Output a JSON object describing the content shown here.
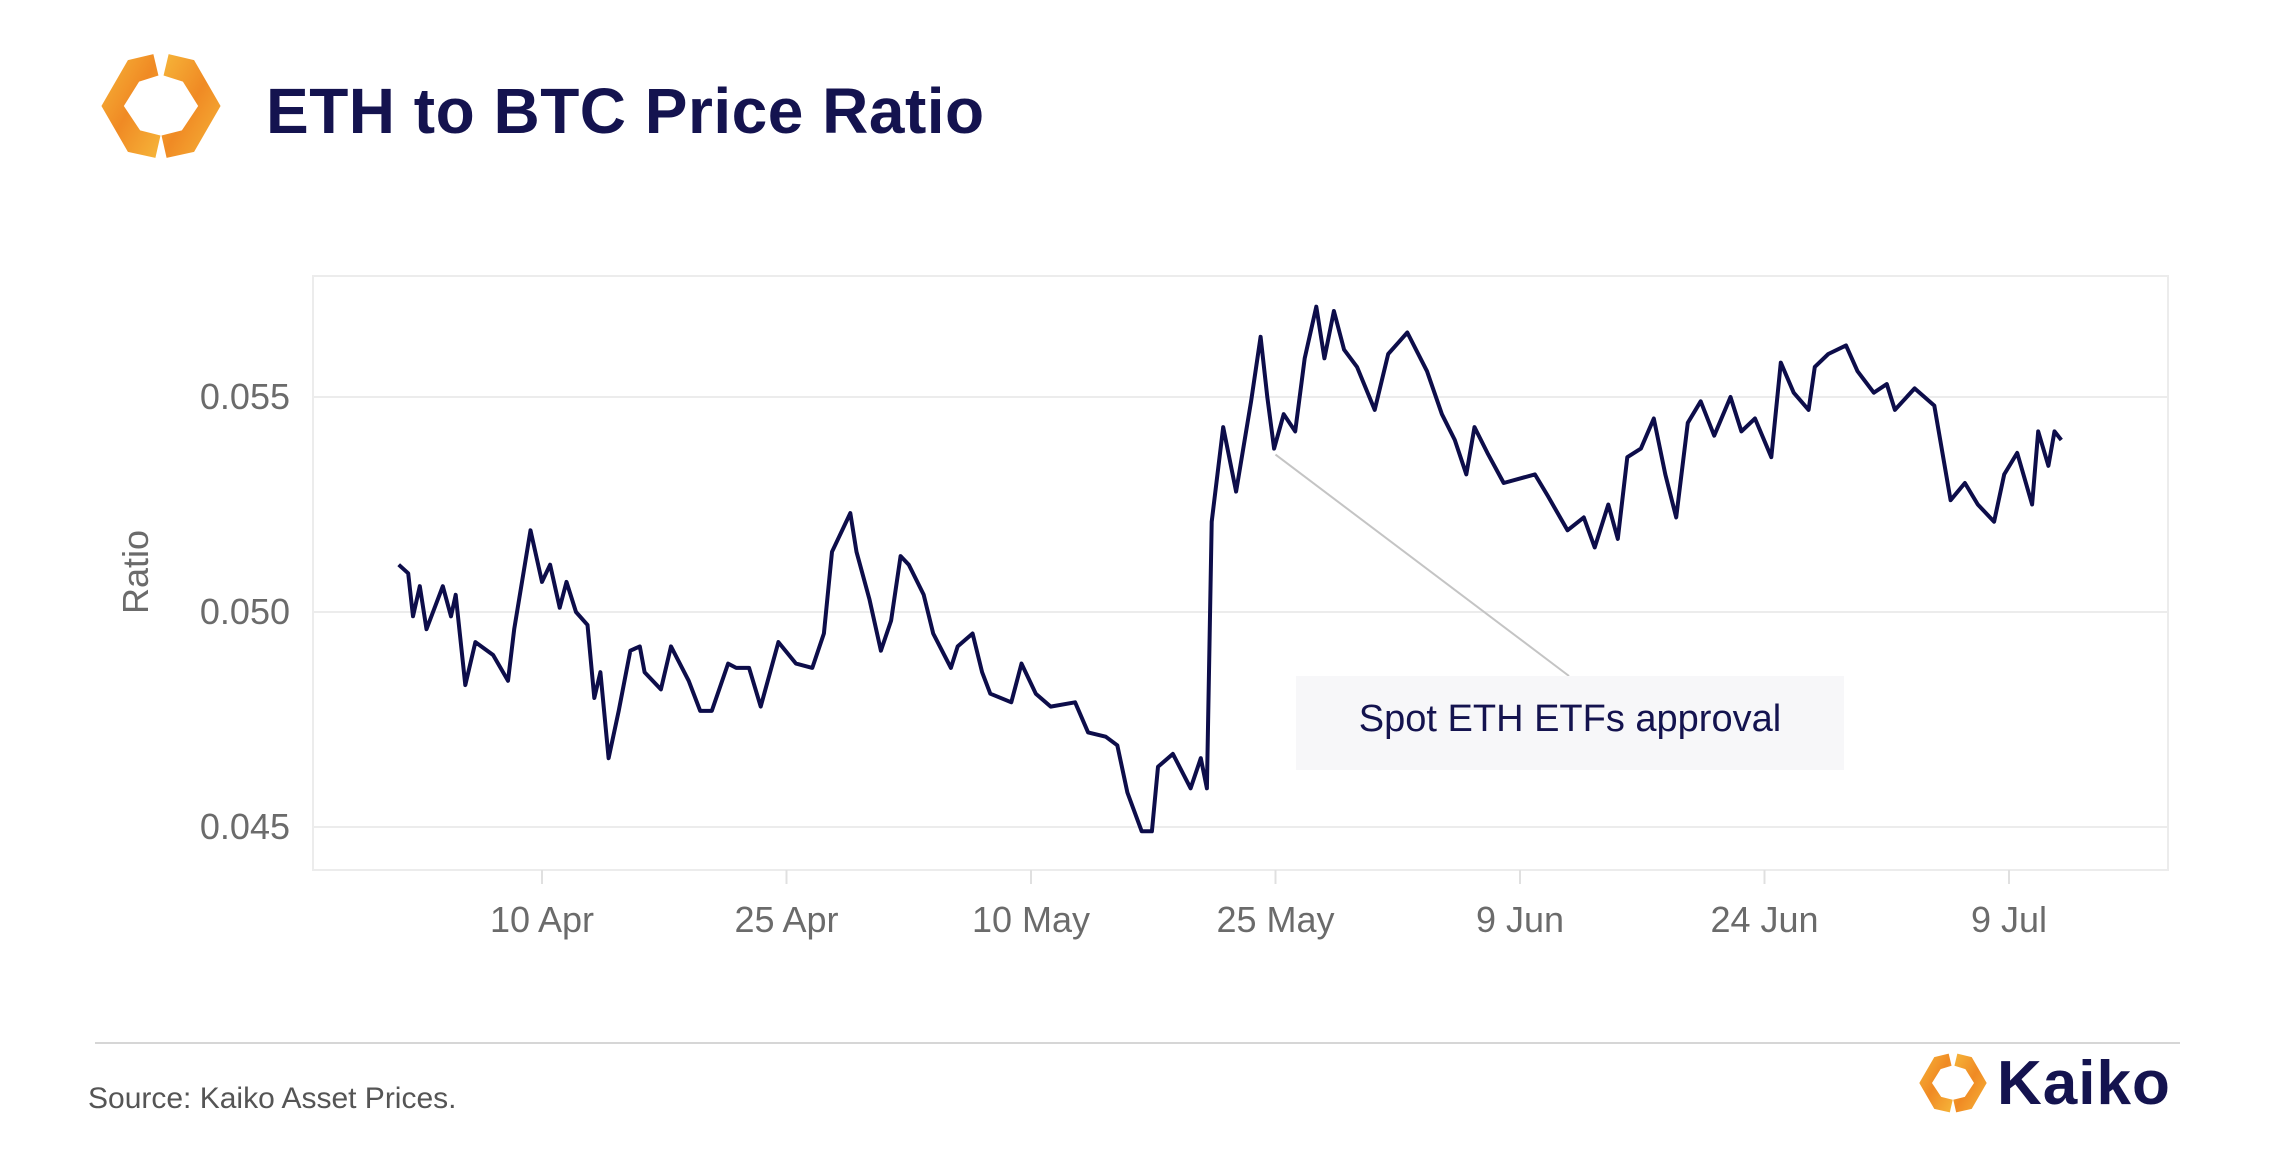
{
  "header": {
    "title": "ETH to BTC Price Ratio",
    "logo_icon": "kaiko-hexagon-logo"
  },
  "footer": {
    "source": "Source: Kaiko Asset Prices.",
    "brand": "Kaiko"
  },
  "colors": {
    "line": "#0d0d4a",
    "title": "#14134f",
    "logo_orange": "#f08a24",
    "logo_yellow": "#f6b63a",
    "grid": "#ececec"
  },
  "chart_data": {
    "type": "line",
    "title": "ETH to BTC Price Ratio",
    "xlabel": "",
    "ylabel": "Ratio",
    "grid": true,
    "ylim": [
      0.0438,
      0.0574
    ],
    "xlim": [
      "2024-03-29",
      "2024-07-15"
    ],
    "x_ticks": [
      {
        "date": "2024-04-10",
        "label": "10 Apr"
      },
      {
        "date": "2024-04-25",
        "label": "25 Apr"
      },
      {
        "date": "2024-05-10",
        "label": "10 May"
      },
      {
        "date": "2024-05-25",
        "label": "25 May"
      },
      {
        "date": "2024-06-09",
        "label": "9 Jun"
      },
      {
        "date": "2024-06-24",
        "label": "24 Jun"
      },
      {
        "date": "2024-07-09",
        "label": "9 Jul"
      }
    ],
    "y_ticks": [
      {
        "value": 0.045,
        "label": "0.045"
      },
      {
        "value": 0.05,
        "label": "0.050"
      },
      {
        "value": 0.055,
        "label": "0.055"
      }
    ],
    "annotations": [
      {
        "text": "Spot ETH ETFs approval",
        "date": "2024-05-25T00:00",
        "value": 0.0538
      }
    ],
    "series": [
      {
        "x": [
          "2024-04-01T05:00",
          "2024-04-01T19:00",
          "2024-04-02T02:00",
          "2024-04-02T12:00",
          "2024-04-02T22:00",
          "2024-04-03T22:00",
          "2024-04-04T10:00",
          "2024-04-04T17:00",
          "2024-04-05T07:00",
          "2024-04-05T22:00",
          "2024-04-07T00:00",
          "2024-04-07T22:00",
          "2024-04-08T07:00",
          "2024-04-09T07:00",
          "2024-04-10T00:00",
          "2024-04-10T12:00",
          "2024-04-11T02:00",
          "2024-04-11T12:00",
          "2024-04-12T02:00",
          "2024-04-12T19:00",
          "2024-04-13T05:00",
          "2024-04-13T14:00",
          "2024-04-14T02:00",
          "2024-04-14T17:00",
          "2024-04-15T10:00",
          "2024-04-16T00:00",
          "2024-04-16T07:00",
          "2024-04-17T07:00",
          "2024-04-17T22:00",
          "2024-04-19T00:00",
          "2024-04-19T17:00",
          "2024-04-20T10:00",
          "2024-04-21T10:00",
          "2024-04-21T22:00",
          "2024-04-22T17:00",
          "2024-04-23T10:00",
          "2024-04-24T12:00",
          "2024-04-25T14:00",
          "2024-04-26T14:00",
          "2024-04-27T07:00",
          "2024-04-27T19:00",
          "2024-04-28T22:00",
          "2024-04-29T07:00",
          "2024-04-30T02:00",
          "2024-04-30T19:00",
          "2024-05-01T10:00",
          "2024-05-02T00:00",
          "2024-05-02T12:00",
          "2024-05-03T10:00",
          "2024-05-04T00:00",
          "2024-05-05T02:00",
          "2024-05-05T12:00",
          "2024-05-06T10:00",
          "2024-05-07T00:00",
          "2024-05-07T12:00",
          "2024-05-08T19:00",
          "2024-05-09T10:00",
          "2024-05-10T07:00",
          "2024-05-11T05:00",
          "2024-05-12T17:00",
          "2024-05-13T12:00",
          "2024-05-14T14:00",
          "2024-05-15T07:00",
          "2024-05-15T22:00",
          "2024-05-16T19:00",
          "2024-05-17T10:00",
          "2024-05-17T19:00",
          "2024-05-18T17:00",
          "2024-05-19T19:00",
          "2024-05-20T10:00",
          "2024-05-20T19:00",
          "2024-05-21T02:00",
          "2024-05-21T19:00",
          "2024-05-22T14:00",
          "2024-05-23T12:00",
          "2024-05-24T02:00",
          "2024-05-24T12:00",
          "2024-05-24T22:00",
          "2024-05-25T12:00",
          "2024-05-26T05:00",
          "2024-05-26T19:00",
          "2024-05-27T12:00",
          "2024-05-28T00:00",
          "2024-05-28T14:00",
          "2024-05-29T05:00",
          "2024-05-30T00:00",
          "2024-05-31T02:00",
          "2024-05-31T22:00",
          "2024-06-02T02:00",
          "2024-06-03T07:00",
          "2024-06-04T05:00",
          "2024-06-05T00:00",
          "2024-06-05T17:00",
          "2024-06-06T05:00",
          "2024-06-07T00:00",
          "2024-06-08T00:00",
          "2024-06-09T22:00",
          "2024-06-10T17:00",
          "2024-06-11T22:00",
          "2024-06-12T22:00",
          "2024-06-13T14:00",
          "2024-06-14T10:00",
          "2024-06-15T00:00",
          "2024-06-15T14:00",
          "2024-06-16T10:00",
          "2024-06-17T05:00",
          "2024-06-17T22:00",
          "2024-06-18T14:00",
          "2024-06-19T07:00",
          "2024-06-20T02:00",
          "2024-06-20T22:00",
          "2024-06-21T22:00",
          "2024-06-22T14:00",
          "2024-06-23T10:00",
          "2024-06-24T10:00",
          "2024-06-25T00:00",
          "2024-06-25T19:00",
          "2024-06-26T17:00",
          "2024-06-27T02:00",
          "2024-06-27T22:00",
          "2024-06-29T00:00",
          "2024-06-29T17:00",
          "2024-06-30T17:00",
          "2024-07-01T12:00",
          "2024-07-02T00:00",
          "2024-07-03T05:00",
          "2024-07-04T10:00",
          "2024-07-05T10:00",
          "2024-07-06T07:00",
          "2024-07-07T02:00",
          "2024-07-08T02:00",
          "2024-07-08T17:00",
          "2024-07-09T12:00",
          "2024-07-10T10:00",
          "2024-07-10T19:00",
          "2024-07-11T10:00",
          "2024-07-11T19:00",
          "2024-07-12T05:00"
        ],
        "values": [
          0.0511,
          0.0509,
          0.0499,
          0.0506,
          0.0496,
          0.0506,
          0.0499,
          0.0504,
          0.0483,
          0.0493,
          0.049,
          0.0484,
          0.0496,
          0.0519,
          0.0507,
          0.0511,
          0.0501,
          0.0507,
          0.05,
          0.0497,
          0.048,
          0.0486,
          0.0466,
          0.0477,
          0.0491,
          0.0492,
          0.0486,
          0.0482,
          0.0492,
          0.0484,
          0.0477,
          0.0477,
          0.0488,
          0.0487,
          0.0487,
          0.0478,
          0.0493,
          0.0488,
          0.0487,
          0.0495,
          0.0514,
          0.0523,
          0.0514,
          0.0503,
          0.0491,
          0.0498,
          0.0513,
          0.0511,
          0.0504,
          0.0495,
          0.0487,
          0.0492,
          0.0495,
          0.0486,
          0.0481,
          0.0479,
          0.0488,
          0.0481,
          0.0478,
          0.0479,
          0.0472,
          0.0471,
          0.0469,
          0.0458,
          0.0449,
          0.0449,
          0.0464,
          0.0467,
          0.0459,
          0.0466,
          0.0459,
          0.0521,
          0.0543,
          0.0528,
          0.0549,
          0.0564,
          0.055,
          0.0538,
          0.0546,
          0.0542,
          0.0559,
          0.0571,
          0.0559,
          0.057,
          0.0561,
          0.0557,
          0.0547,
          0.056,
          0.0565,
          0.0556,
          0.0546,
          0.054,
          0.0532,
          0.0543,
          0.0537,
          0.053,
          0.0532,
          0.0527,
          0.0519,
          0.0522,
          0.0515,
          0.0525,
          0.0517,
          0.0536,
          0.0538,
          0.0545,
          0.0532,
          0.0522,
          0.0544,
          0.0549,
          0.0541,
          0.055,
          0.0542,
          0.0545,
          0.0536,
          0.0558,
          0.0551,
          0.0547,
          0.0557,
          0.056,
          0.0562,
          0.0556,
          0.0551,
          0.0553,
          0.0547,
          0.0552,
          0.0548,
          0.0526,
          0.053,
          0.0525,
          0.0521,
          0.0532,
          0.0537,
          0.0525,
          0.0542,
          0.0534,
          0.0542,
          0.054
        ]
      }
    ]
  }
}
